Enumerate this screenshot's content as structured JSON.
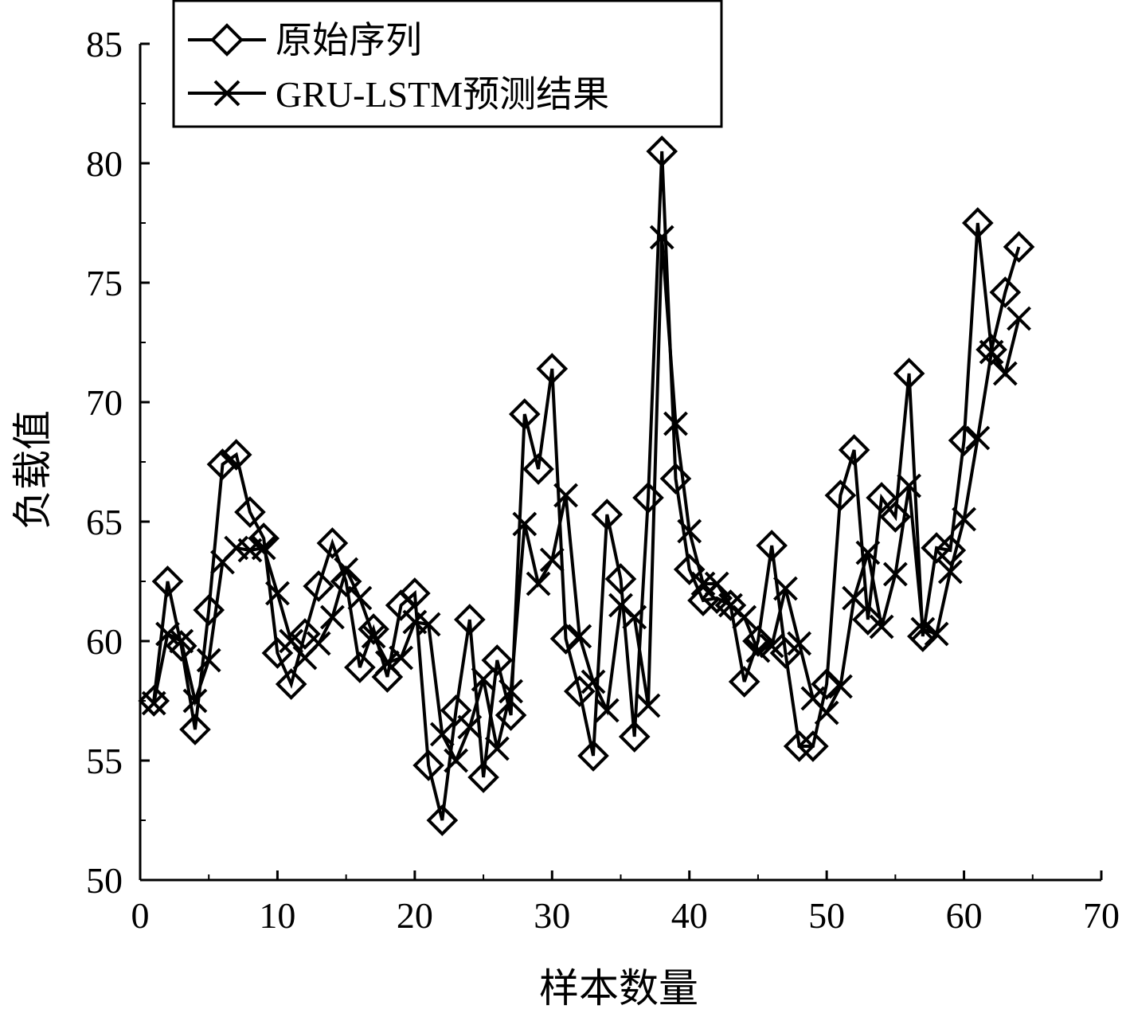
{
  "chart_data": {
    "type": "line",
    "xlabel": "样本数量",
    "ylabel": "负载值",
    "xlim": [
      0,
      70
    ],
    "ylim": [
      50,
      85
    ],
    "xticks": [
      "0",
      "10",
      "20",
      "30",
      "40",
      "50",
      "60",
      "70"
    ],
    "yticks": [
      "50",
      "55",
      "60",
      "65",
      "70",
      "75",
      "80",
      "85"
    ],
    "grid": false,
    "legend_position": "top-left",
    "x": [
      1,
      2,
      3,
      4,
      5,
      6,
      7,
      8,
      9,
      10,
      11,
      12,
      13,
      14,
      15,
      16,
      17,
      18,
      19,
      20,
      21,
      22,
      23,
      24,
      25,
      26,
      27,
      28,
      29,
      30,
      31,
      32,
      33,
      34,
      35,
      36,
      37,
      38,
      39,
      40,
      41,
      42,
      43,
      44,
      45,
      46,
      47,
      48,
      49,
      50,
      51,
      52,
      53,
      54,
      55,
      56,
      57,
      58,
      59,
      60,
      61,
      62,
      63,
      64
    ],
    "series": [
      {
        "name": "原始序列",
        "marker": "diamond",
        "color": "#000000",
        "values": [
          57.5,
          62.5,
          59.8,
          56.3,
          61.3,
          67.4,
          67.8,
          65.4,
          64.3,
          59.5,
          58.2,
          60.3,
          62.3,
          64.1,
          62.5,
          58.9,
          60.5,
          58.5,
          61.5,
          62.0,
          54.8,
          52.5,
          57.1,
          60.9,
          54.3,
          59.2,
          56.9,
          69.5,
          67.2,
          71.4,
          60.1,
          57.9,
          55.2,
          65.3,
          62.6,
          56.0,
          66.0,
          80.5,
          66.8,
          63.0,
          61.7,
          61.8,
          61.5,
          58.3,
          60.0,
          64.0,
          59.5,
          55.6,
          55.6,
          58.2,
          66.1,
          68.0,
          60.9,
          66.0,
          65.2,
          71.2,
          60.2,
          63.9,
          63.8,
          68.4,
          77.5,
          72.2,
          74.6,
          76.5
        ]
      },
      {
        "name": "GRU-LSTM预测结果",
        "marker": "x",
        "color": "#000000",
        "values": [
          57.4,
          60.3,
          60.0,
          57.5,
          59.2,
          63.3,
          63.9,
          63.8,
          63.9,
          62.0,
          60.0,
          59.3,
          59.9,
          61.0,
          63.0,
          61.8,
          60.2,
          59.1,
          59.3,
          60.8,
          60.7,
          56.1,
          55.0,
          56.4,
          58.4,
          55.5,
          57.9,
          64.9,
          62.4,
          63.4,
          66.1,
          60.2,
          58.3,
          57.1,
          61.5,
          61.0,
          57.3,
          76.9,
          69.1,
          64.6,
          62.4,
          62.4,
          61.5,
          61.0,
          59.6,
          59.8,
          62.2,
          59.9,
          57.6,
          57.0,
          58.1,
          61.8,
          63.7,
          60.6,
          62.8,
          66.5,
          60.5,
          60.3,
          62.9,
          65.1,
          68.5,
          72.1,
          71.2,
          73.5
        ]
      }
    ]
  }
}
